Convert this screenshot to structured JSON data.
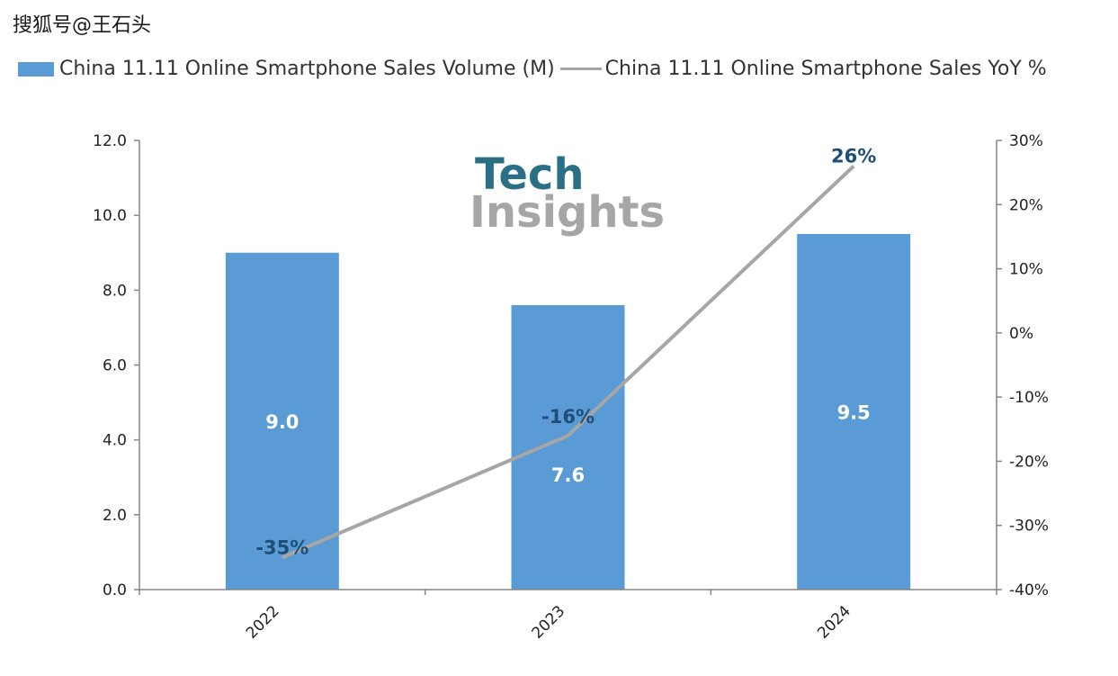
{
  "header": {
    "watermark": "搜狐号@王石头"
  },
  "colors": {
    "bar": "#5b9bd5",
    "line": "#a6a6a6",
    "axis": "#868686",
    "line_label": "#1f4e79"
  },
  "logo": {
    "line1": "Tech",
    "line2": "Insights"
  },
  "chart_data": {
    "type": "bar",
    "categories": [
      "2022",
      "2023",
      "2024"
    ],
    "series": [
      {
        "name": "China 11.11 Online Smartphone Sales Volume (M)",
        "type": "bar",
        "axis": "left",
        "values": [
          9.0,
          7.6,
          9.5
        ],
        "labels": [
          "9.0",
          "7.6",
          "9.5"
        ]
      },
      {
        "name": "China 11.11 Online Smartphone Sales YoY %",
        "type": "line",
        "axis": "right",
        "values": [
          -35,
          -16,
          26
        ],
        "labels": [
          "-35%",
          "-16%",
          "26%"
        ]
      }
    ],
    "y_left": {
      "ylim": [
        0,
        12
      ],
      "ticks": [
        "0.0",
        "2.0",
        "4.0",
        "6.0",
        "8.0",
        "10.0",
        "12.0"
      ]
    },
    "y_right": {
      "ylim": [
        -40,
        30
      ],
      "ticks": [
        "-40%",
        "-30%",
        "-20%",
        "-10%",
        "0%",
        "10%",
        "20%",
        "30%"
      ]
    },
    "title": "",
    "xlabel": "",
    "ylabel": "",
    "legend": "top-left",
    "grid": false
  }
}
